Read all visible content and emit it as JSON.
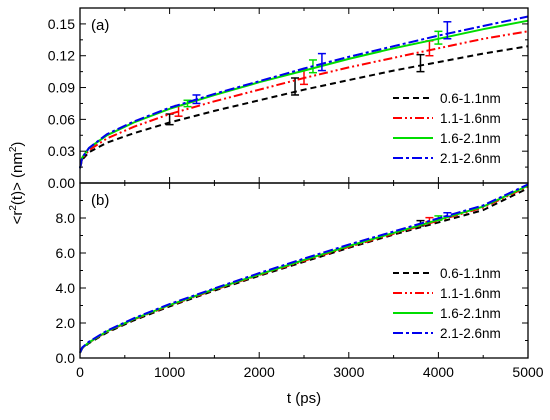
{
  "chart_data": [
    {
      "panel_label": "(a)",
      "type": "line",
      "xlim": [
        0,
        5000
      ],
      "ylim": [
        0,
        0.165
      ],
      "yticks": [
        0.0,
        0.03,
        0.06,
        0.09,
        0.12,
        0.15
      ],
      "ytick_labels": [
        "0.00",
        "0.03",
        "0.06",
        "0.09",
        "0.12",
        "0.15"
      ],
      "legend_position": "lower-right",
      "series": [
        {
          "name": "0.6-1.1nm",
          "color": "#000000",
          "dash": "dashed",
          "x": [
            0,
            25,
            100,
            300,
            600,
            1000,
            1500,
            2000,
            2500,
            3000,
            3500,
            4000,
            4500,
            5000
          ],
          "y": [
            0.014,
            0.022,
            0.029,
            0.038,
            0.047,
            0.057,
            0.068,
            0.078,
            0.088,
            0.097,
            0.106,
            0.114,
            0.122,
            0.129
          ],
          "error_bars": [
            {
              "x": 1000,
              "y": 0.06,
              "err": 0.005
            },
            {
              "x": 2400,
              "y": 0.091,
              "err": 0.008
            },
            {
              "x": 3800,
              "y": 0.113,
              "err": 0.008
            }
          ]
        },
        {
          "name": "1.1-1.6nm",
          "color": "#ff0000",
          "dash": "dash-dot-dot",
          "x": [
            0,
            25,
            100,
            300,
            600,
            1000,
            1500,
            2000,
            2500,
            3000,
            3500,
            4000,
            4500,
            5000
          ],
          "y": [
            0.014,
            0.023,
            0.031,
            0.042,
            0.053,
            0.065,
            0.077,
            0.088,
            0.099,
            0.109,
            0.118,
            0.127,
            0.136,
            0.143
          ],
          "error_bars": [
            {
              "x": 1100,
              "y": 0.068,
              "err": 0.005
            },
            {
              "x": 2500,
              "y": 0.1,
              "err": 0.007
            },
            {
              "x": 3900,
              "y": 0.127,
              "err": 0.007
            }
          ]
        },
        {
          "name": "1.6-2.1nm",
          "color": "#00dd00",
          "dash": "solid",
          "x": [
            0,
            25,
            100,
            300,
            600,
            1000,
            1500,
            2000,
            2500,
            3000,
            3500,
            4000,
            4500,
            5000
          ],
          "y": [
            0.014,
            0.024,
            0.033,
            0.045,
            0.057,
            0.07,
            0.083,
            0.095,
            0.106,
            0.117,
            0.127,
            0.136,
            0.145,
            0.153
          ],
          "error_bars": [
            {
              "x": 1200,
              "y": 0.075,
              "err": 0.003
            },
            {
              "x": 2600,
              "y": 0.11,
              "err": 0.006
            },
            {
              "x": 4000,
              "y": 0.137,
              "err": 0.006
            }
          ]
        },
        {
          "name": "2.1-2.6nm",
          "color": "#0000ee",
          "dash": "dash-dot",
          "x": [
            0,
            25,
            100,
            300,
            600,
            1000,
            1500,
            2000,
            2500,
            3000,
            3500,
            4000,
            4500,
            5000
          ],
          "y": [
            0.014,
            0.024,
            0.033,
            0.046,
            0.058,
            0.071,
            0.084,
            0.096,
            0.108,
            0.119,
            0.129,
            0.139,
            0.148,
            0.157
          ],
          "error_bars": [
            {
              "x": 1300,
              "y": 0.079,
              "err": 0.004
            },
            {
              "x": 2700,
              "y": 0.114,
              "err": 0.008
            },
            {
              "x": 4100,
              "y": 0.144,
              "err": 0.008
            }
          ]
        }
      ]
    },
    {
      "panel_label": "(b)",
      "type": "line",
      "xlim": [
        0,
        5000
      ],
      "ylim": [
        0,
        10
      ],
      "yticks": [
        0,
        2,
        4,
        6,
        8
      ],
      "ytick_labels": [
        "0.0",
        "2.0",
        "4.0",
        "6.0",
        "8.0"
      ],
      "xticks": [
        0,
        1000,
        2000,
        3000,
        4000,
        5000
      ],
      "xtick_labels": [
        "0",
        "1000",
        "2000",
        "3000",
        "4000",
        "5000"
      ],
      "xlabel": "t (ps)",
      "legend_position": "lower-right",
      "series": [
        {
          "name": "0.6-1.1nm",
          "color": "#000000",
          "dash": "dashed",
          "x": [
            0,
            25,
            100,
            300,
            600,
            1000,
            1500,
            2000,
            2500,
            3000,
            3500,
            4000,
            4500,
            5000
          ],
          "y": [
            0.3,
            0.55,
            0.85,
            1.45,
            2.15,
            2.95,
            3.85,
            4.7,
            5.5,
            6.3,
            7.05,
            7.75,
            8.45,
            9.7
          ],
          "error_bars": [
            {
              "x": 3800,
              "y": 7.7,
              "err": 0.15
            }
          ]
        },
        {
          "name": "1.1-1.6nm",
          "color": "#ff0000",
          "dash": "dash-dot-dot",
          "x": [
            0,
            25,
            100,
            300,
            600,
            1000,
            1500,
            2000,
            2500,
            3000,
            3500,
            4000,
            4500,
            5000
          ],
          "y": [
            0.3,
            0.57,
            0.88,
            1.5,
            2.2,
            3.0,
            3.9,
            4.75,
            5.55,
            6.35,
            7.1,
            7.85,
            8.6,
            9.8
          ],
          "error_bars": [
            {
              "x": 3900,
              "y": 7.9,
              "err": 0.12
            }
          ]
        },
        {
          "name": "1.6-2.1nm",
          "color": "#00dd00",
          "dash": "solid",
          "x": [
            0,
            25,
            100,
            300,
            600,
            1000,
            1500,
            2000,
            2500,
            3000,
            3500,
            4000,
            4500,
            5000
          ],
          "y": [
            0.3,
            0.58,
            0.9,
            1.52,
            2.22,
            3.03,
            3.93,
            4.78,
            5.6,
            6.4,
            7.15,
            7.9,
            8.65,
            9.85
          ],
          "error_bars": [
            {
              "x": 4000,
              "y": 8.0,
              "err": 0.12
            }
          ]
        },
        {
          "name": "2.1-2.6nm",
          "color": "#0000ee",
          "dash": "dash-dot",
          "x": [
            0,
            25,
            100,
            300,
            600,
            1000,
            1500,
            2000,
            2500,
            3000,
            3500,
            4000,
            4500,
            5000
          ],
          "y": [
            0.3,
            0.6,
            0.93,
            1.56,
            2.27,
            3.08,
            3.98,
            4.85,
            5.68,
            6.48,
            7.23,
            7.98,
            8.72,
            9.92
          ],
          "error_bars": [
            {
              "x": 4100,
              "y": 8.2,
              "err": 0.1
            }
          ]
        }
      ]
    }
  ],
  "shared_ylabel": {
    "prefix": "<r",
    "sup1": "2",
    "middle": "(t)> (nm",
    "sup2": "2",
    "suffix": ")"
  }
}
